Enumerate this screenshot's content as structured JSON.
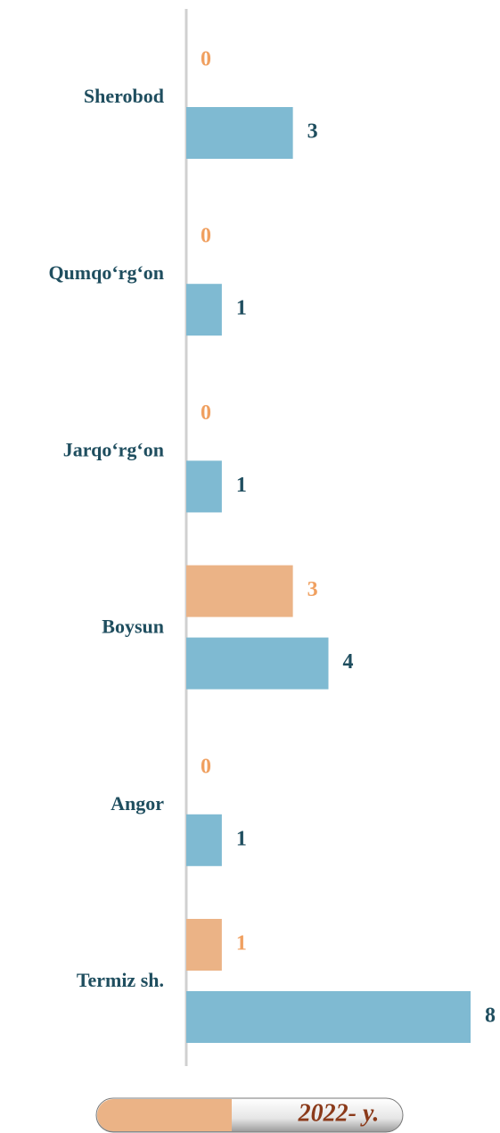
{
  "chart_data": {
    "type": "bar",
    "orientation": "horizontal",
    "categories": [
      "Sherobod",
      "Qumqo‘rg‘on",
      "Jarqo‘rg‘on",
      "Boysun",
      "Angor",
      "Termiz sh."
    ],
    "series": [
      {
        "name": "2022- y.",
        "color": "#ebb386",
        "values": [
          0,
          0,
          0,
          3,
          0,
          1
        ]
      },
      {
        "color": "#7fbad2",
        "values": [
          3,
          1,
          1,
          4,
          1,
          8
        ]
      }
    ],
    "xlim": [
      0,
      8
    ]
  }
}
